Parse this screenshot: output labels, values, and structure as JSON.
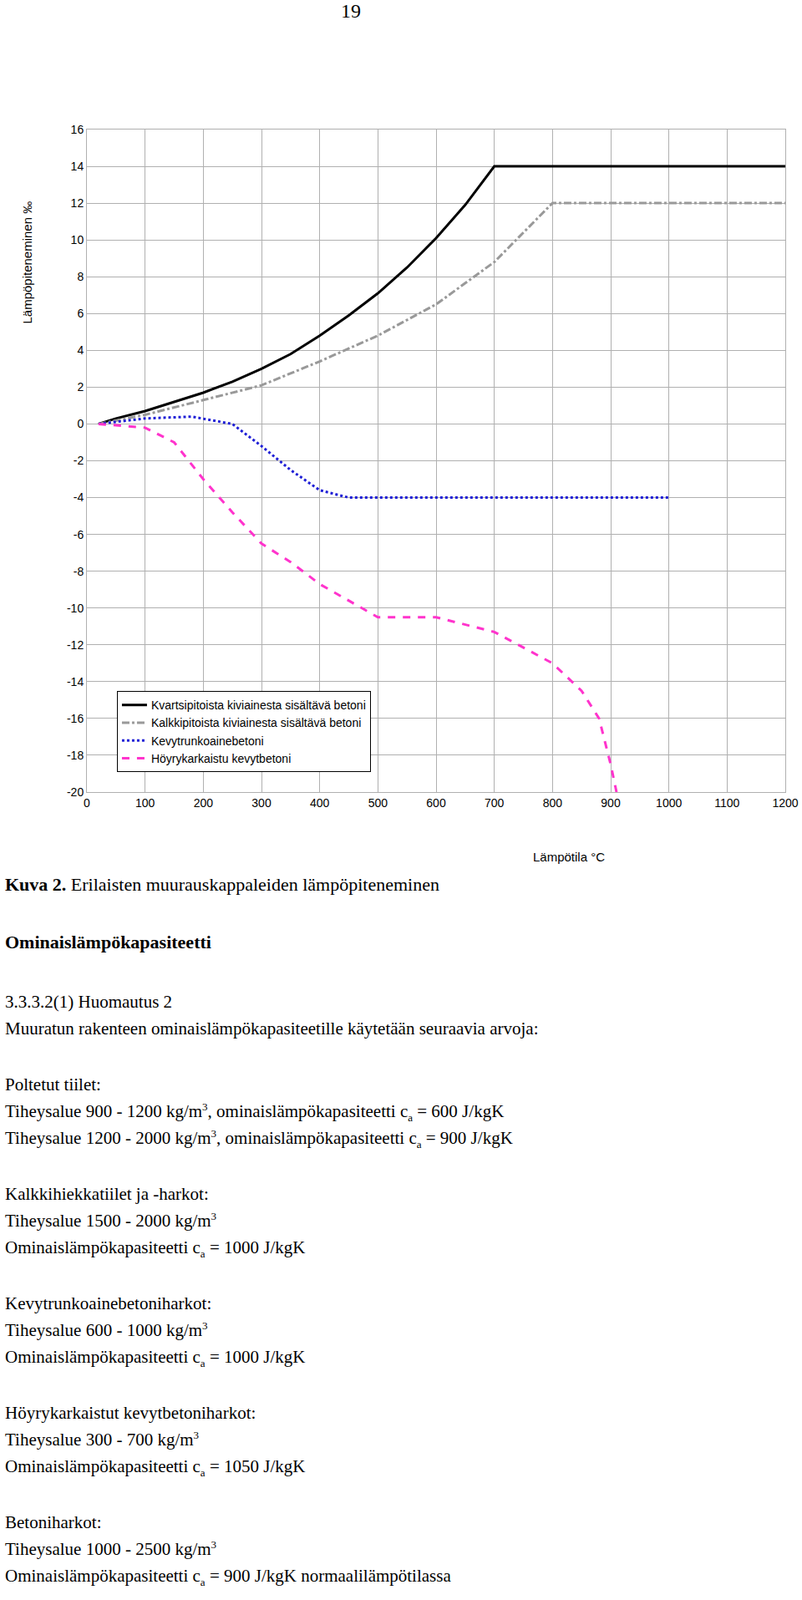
{
  "page_number": "19",
  "chart_data": {
    "type": "line",
    "x_label": "Lämpötila °C",
    "y_label": "Lämpöpiteneminen ‰",
    "xlim": [
      0,
      1200
    ],
    "xticks": [
      0,
      100,
      200,
      300,
      400,
      500,
      600,
      700,
      800,
      900,
      1000,
      1100,
      1200
    ],
    "ylim": [
      -20,
      16
    ],
    "yticks": [
      -20,
      -18,
      -16,
      -14,
      -12,
      -10,
      -8,
      -6,
      -4,
      -2,
      0,
      2,
      4,
      6,
      8,
      10,
      12,
      14,
      16
    ],
    "grid": true,
    "legend": "lower left",
    "series": [
      {
        "name": "Kvartsipitoista kiviainesta sisältävä betoni",
        "color": "#000000",
        "line_style": "solid",
        "x": [
          20,
          50,
          100,
          150,
          200,
          250,
          300,
          350,
          400,
          450,
          500,
          550,
          600,
          650,
          700,
          1200
        ],
        "values": [
          0,
          0.3,
          0.7,
          1.2,
          1.7,
          2.3,
          3.0,
          3.8,
          4.8,
          5.9,
          7.1,
          8.5,
          10.1,
          11.9,
          14,
          14
        ]
      },
      {
        "name": "Kalkkipitoista kiviainesta sisältävä betoni",
        "color": "#999999",
        "line_style": "dashdot",
        "x": [
          20,
          100,
          200,
          300,
          400,
          500,
          600,
          700,
          800,
          1200
        ],
        "values": [
          0,
          0.5,
          1.3,
          2.1,
          3.4,
          4.8,
          6.5,
          8.8,
          12,
          12
        ]
      },
      {
        "name": "Kevytrunkoainebetoni",
        "color": "#1f1fd6",
        "line_style": "dot",
        "x": [
          20,
          100,
          180,
          250,
          300,
          350,
          400,
          450,
          1000
        ],
        "values": [
          0,
          0.3,
          0.4,
          0,
          -1.2,
          -2.5,
          -3.6,
          -4,
          -4
        ]
      },
      {
        "name": "Höyrykarkaistu kevytbetoni",
        "color": "#ff33cc",
        "line_style": "dash",
        "x": [
          20,
          100,
          150,
          200,
          250,
          300,
          350,
          400,
          450,
          500,
          600,
          700,
          800,
          850,
          880,
          900,
          910
        ],
        "values": [
          0,
          -0.2,
          -1,
          -3,
          -4.8,
          -6.5,
          -7.5,
          -8.7,
          -9.6,
          -10.5,
          -10.5,
          -11.3,
          -13,
          -14.5,
          -16,
          -18.5,
          -20
        ]
      }
    ]
  },
  "caption": [
    {
      "bold": "Kuva 2."
    },
    {
      "text": " Erilaisten muurauskappaleiden lämpöpiteneminen"
    }
  ],
  "heading": "Ominaislämpökapasiteetti",
  "paragraphs": [
    [
      [
        {
          "text": "3.3.3.2(1) Huomautus 2"
        }
      ],
      [
        {
          "text": "Muuratun rakenteen ominaislämpökapasiteetille käytetään seuraavia arvoja:"
        }
      ]
    ],
    [
      [
        {
          "text": "Poltetut tiilet:"
        }
      ],
      [
        {
          "text": "Tiheysalue 900 - 1200 kg/m"
        },
        {
          "sup": "3"
        },
        {
          "text": ", ominaislämpökapasiteetti c"
        },
        {
          "sub": "a"
        },
        {
          "text": " = 600 J/kgK"
        }
      ],
      [
        {
          "text": "Tiheysalue 1200 - 2000 kg/m"
        },
        {
          "sup": "3"
        },
        {
          "text": ", ominaislämpökapasiteetti c"
        },
        {
          "sub": "a"
        },
        {
          "text": " = 900 J/kgK"
        }
      ]
    ],
    [
      [
        {
          "text": "Kalkkihiekkatiilet ja -harkot:"
        }
      ],
      [
        {
          "text": "Tiheysalue 1500 - 2000 kg/m"
        },
        {
          "sup": "3"
        }
      ],
      [
        {
          "text": "Ominaislämpökapasiteetti c"
        },
        {
          "sub": "a"
        },
        {
          "text": " = 1000 J/kgK"
        }
      ]
    ],
    [
      [
        {
          "text": "Kevytrunkoainebetoniharkot:"
        }
      ],
      [
        {
          "text": "Tiheysalue 600 - 1000 kg/m"
        },
        {
          "sup": "3"
        }
      ],
      [
        {
          "text": "Ominaislämpökapasiteetti c"
        },
        {
          "sub": "a"
        },
        {
          "text": " = 1000 J/kgK"
        }
      ]
    ],
    [
      [
        {
          "text": "Höyrykarkaistut kevytbetoniharkot:"
        }
      ],
      [
        {
          "text": "Tiheysalue 300 - 700 kg/m"
        },
        {
          "sup": "3"
        }
      ],
      [
        {
          "text": "Ominaislämpökapasiteetti c"
        },
        {
          "sub": "a"
        },
        {
          "text": " = 1050 J/kgK"
        }
      ]
    ],
    [
      [
        {
          "text": "Betoniharkot:"
        }
      ],
      [
        {
          "text": "Tiheysalue 1000 - 2500 kg/m"
        },
        {
          "sup": "3"
        }
      ],
      [
        {
          "text": "Ominaislämpökapasiteetti c"
        },
        {
          "sub": "a"
        },
        {
          "text": " = 900 J/kgK normaalilämpötilassa"
        }
      ]
    ]
  ]
}
